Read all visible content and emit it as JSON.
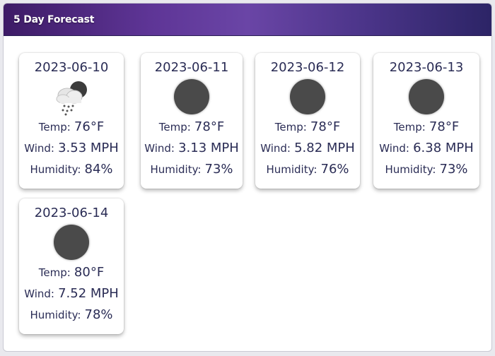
{
  "header": {
    "title": "5 Day Forecast"
  },
  "days": [
    {
      "date": "2023-06-10",
      "icon": "rain-cloud-night-icon",
      "temp_label": "Temp:",
      "temp_value": "76°F",
      "wind_label": "Wind:",
      "wind_value": "3.53 MPH",
      "humidity_label": "Humidity:",
      "humidity_value": "84%"
    },
    {
      "date": "2023-06-11",
      "icon": "moon-icon",
      "temp_label": "Temp:",
      "temp_value": "78°F",
      "wind_label": "Wind:",
      "wind_value": "3.13 MPH",
      "humidity_label": "Humidity:",
      "humidity_value": "73%"
    },
    {
      "date": "2023-06-12",
      "icon": "moon-icon",
      "temp_label": "Temp:",
      "temp_value": "78°F",
      "wind_label": "Wind:",
      "wind_value": "5.82 MPH",
      "humidity_label": "Humidity:",
      "humidity_value": "76%"
    },
    {
      "date": "2023-06-13",
      "icon": "moon-icon",
      "temp_label": "Temp:",
      "temp_value": "78°F",
      "wind_label": "Wind:",
      "wind_value": "6.38 MPH",
      "humidity_label": "Humidity:",
      "humidity_value": "73%"
    },
    {
      "date": "2023-06-14",
      "icon": "moon-icon",
      "temp_label": "Temp:",
      "temp_value": "80°F",
      "wind_label": "Wind:",
      "wind_value": "7.52 MPH",
      "humidity_label": "Humidity:",
      "humidity_value": "78%"
    }
  ],
  "colors": {
    "header_start": "#3d1b66",
    "header_end": "#2c2466",
    "text": "#2a2c55",
    "moon": "#4a4a4a"
  }
}
